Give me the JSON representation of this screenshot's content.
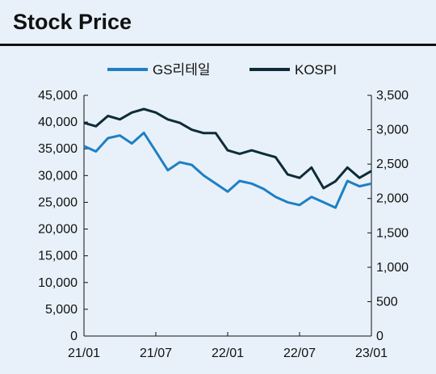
{
  "chart_data": {
    "type": "line",
    "title": "Stock Price",
    "x_ticks": [
      "21/01",
      "21/07",
      "22/01",
      "22/07",
      "23/01"
    ],
    "left_axis": {
      "ylim": [
        0,
        45000
      ],
      "ticks": [
        "45,000",
        "40,000",
        "35,000",
        "30,000",
        "25,000",
        "20,000",
        "15,000",
        "10,000",
        "5,000",
        "0"
      ]
    },
    "right_axis": {
      "ylim": [
        0,
        3500
      ],
      "ticks": [
        "3,500",
        "3,000",
        "2,500",
        "2,000",
        "1,500",
        "1,000",
        "500",
        "0"
      ]
    },
    "grid": false,
    "legend_position": "top-center",
    "series": [
      {
        "name": "GS리테일",
        "axis": "left",
        "color": "#1f7fc4",
        "x": [
          "21/01",
          "21/02",
          "21/03",
          "21/04",
          "21/05",
          "21/06",
          "21/07",
          "21/08",
          "21/09",
          "21/10",
          "21/11",
          "21/12",
          "22/01",
          "22/02",
          "22/03",
          "22/04",
          "22/05",
          "22/06",
          "22/07",
          "22/08",
          "22/09",
          "22/10",
          "22/11",
          "22/12",
          "23/01"
        ],
        "values": [
          35500,
          34500,
          37000,
          37500,
          36000,
          38000,
          34500,
          31000,
          32500,
          32000,
          30000,
          28500,
          27000,
          29000,
          28500,
          27500,
          26000,
          25000,
          24500,
          26000,
          25000,
          24000,
          29000,
          28000,
          28500
        ]
      },
      {
        "name": "KOSPI",
        "axis": "right",
        "color": "#0e2c38",
        "x": [
          "21/01",
          "21/02",
          "21/03",
          "21/04",
          "21/05",
          "21/06",
          "21/07",
          "21/08",
          "21/09",
          "21/10",
          "21/11",
          "21/12",
          "22/01",
          "22/02",
          "22/03",
          "22/04",
          "22/05",
          "22/06",
          "22/07",
          "22/08",
          "22/09",
          "22/10",
          "22/11",
          "22/12",
          "23/01"
        ],
        "values": [
          3100,
          3050,
          3200,
          3150,
          3250,
          3300,
          3250,
          3150,
          3100,
          3000,
          2950,
          2950,
          2700,
          2650,
          2700,
          2650,
          2600,
          2350,
          2300,
          2450,
          2150,
          2250,
          2450,
          2300,
          2400
        ]
      }
    ]
  }
}
